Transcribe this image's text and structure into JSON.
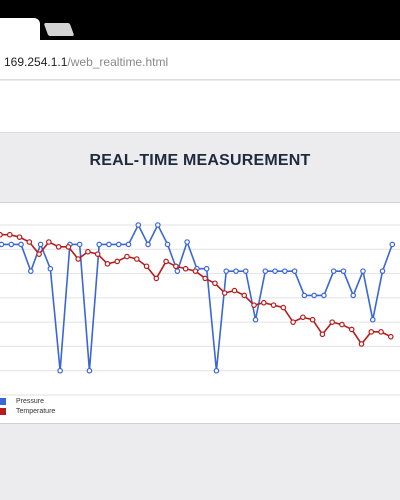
{
  "browser": {
    "tab_close_glyph": "×",
    "url_host": "169.254.1.1",
    "url_path": "/web_realtime.html"
  },
  "page": {
    "title": "REAL-TIME MEASUREMENT"
  },
  "colors": {
    "pressure": "#3a66d6",
    "temperature": "#b61c1c",
    "grid": "#e2e2e2",
    "background": "#ececef"
  },
  "chart_data": {
    "type": "line",
    "title": "",
    "xlabel": "",
    "ylabel": "",
    "grid": true,
    "legend_position": "bottom-left",
    "ylim": [
      0,
      7
    ],
    "series": [
      {
        "name": "Pressure",
        "values": [
          6.2,
          6.2,
          6.2,
          5.1,
          6.2,
          5.2,
          1.0,
          6.2,
          6.2,
          1.0,
          6.2,
          6.2,
          6.2,
          6.2,
          7.0,
          6.2,
          7.0,
          6.2,
          5.1,
          6.3,
          5.2,
          5.2,
          1.0,
          5.1,
          5.1,
          5.1,
          3.1,
          5.1,
          5.1,
          5.1,
          5.1,
          4.1,
          4.1,
          4.1,
          5.1,
          5.1,
          4.1,
          5.1,
          3.1,
          5.1,
          6.2
        ],
        "partial_first": true
      },
      {
        "name": "Temperature",
        "values": [
          6.6,
          6.6,
          6.5,
          6.3,
          5.8,
          6.3,
          6.1,
          6.1,
          5.6,
          5.9,
          5.8,
          5.4,
          5.5,
          5.7,
          5.6,
          5.3,
          4.8,
          5.5,
          5.3,
          5.2,
          5.1,
          4.8,
          4.6,
          4.2,
          4.3,
          4.1,
          3.7,
          3.8,
          3.7,
          3.6,
          3.0,
          3.2,
          3.1,
          2.5,
          3.0,
          2.9,
          2.7,
          2.1,
          2.6,
          2.6,
          2.4
        ]
      }
    ]
  }
}
